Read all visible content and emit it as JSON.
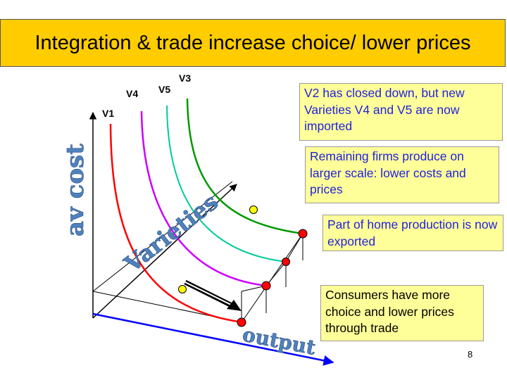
{
  "title": "Integration & trade increase choice/ lower prices",
  "axis_labels": {
    "y": "av cost",
    "x": "output",
    "z": "Varieties"
  },
  "varieties": [
    {
      "label": "V1",
      "color": "#ff0000"
    },
    {
      "label": "V4",
      "color": "#cc00ff"
    },
    {
      "label": "V5",
      "color": "#00cc99"
    },
    {
      "label": "V3",
      "color": "#009900"
    }
  ],
  "notes": {
    "closed": "V2 has closed down, but new Varieties V4 and V5 are now imported",
    "scale": "Remaining firms produce on larger scale: lower costs and prices",
    "exported": "Part of home production is now exported",
    "consumers": "Consumers have more choice and lower prices through trade"
  },
  "colors": {
    "title_bg": "#ffcc00",
    "note_bg": "#ffff99",
    "note_text_blue": "#1f1fe0",
    "output_axis": "#0000ff",
    "axis_word": "#4f81bd",
    "point_red": "#ff0000",
    "point_yellow": "#ffff00"
  },
  "page_number": "8"
}
